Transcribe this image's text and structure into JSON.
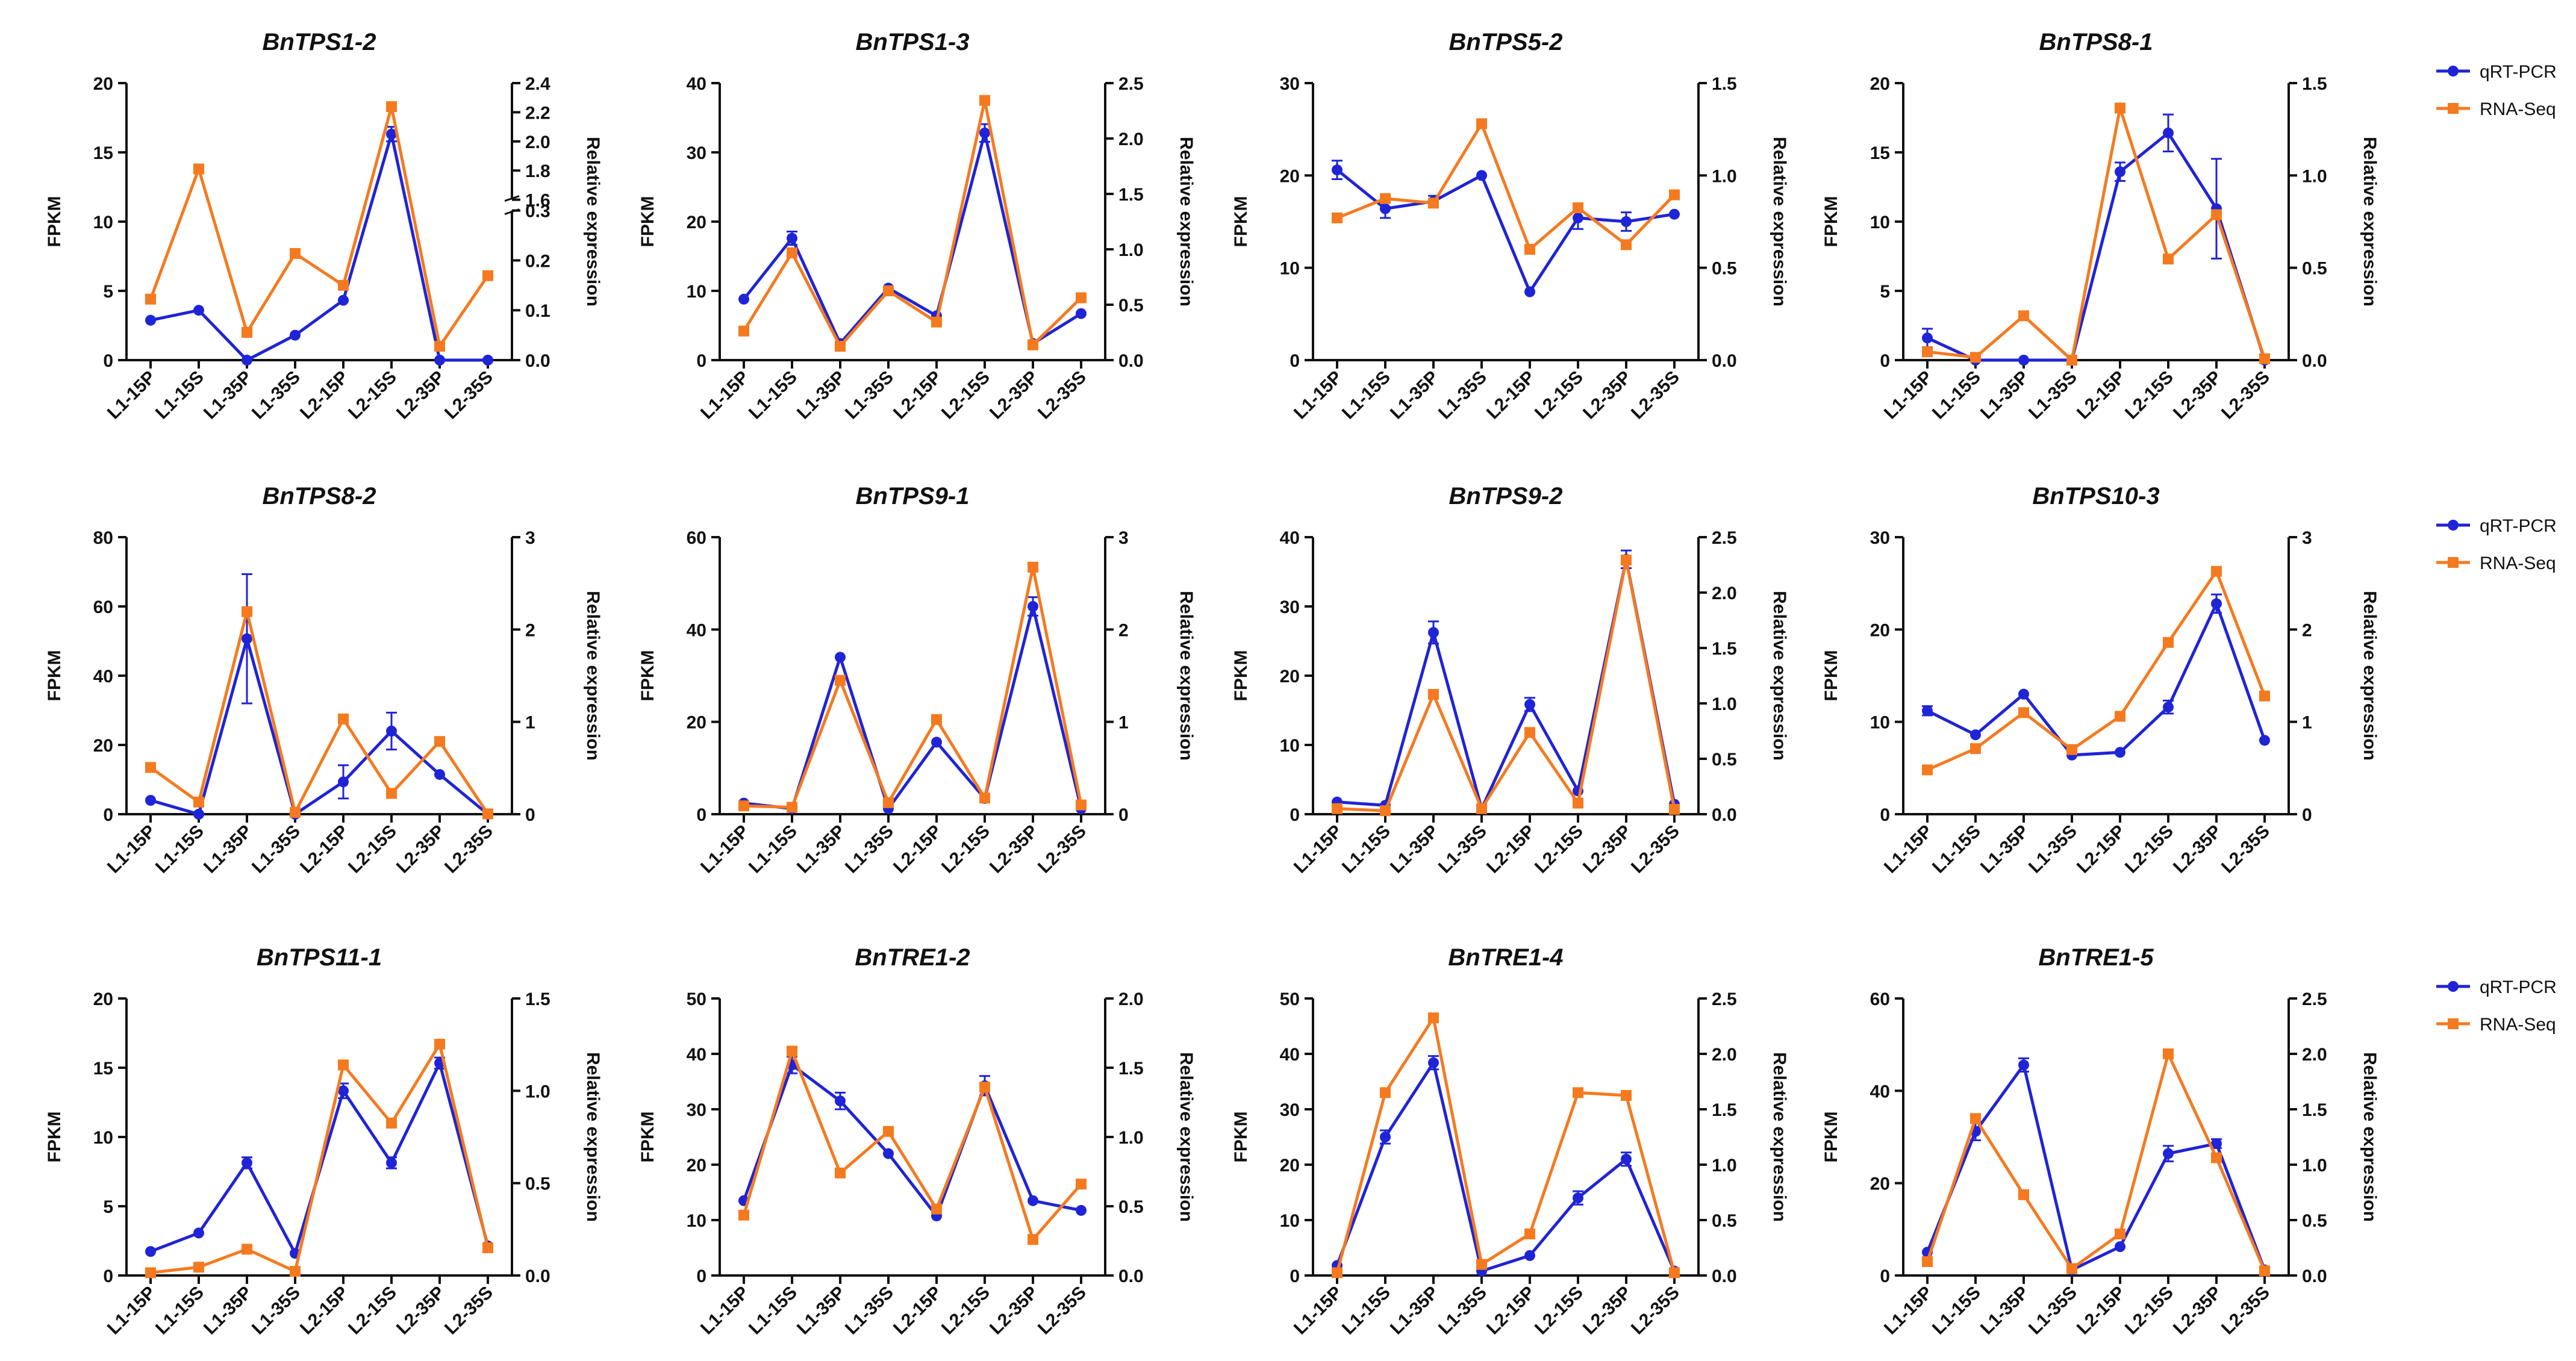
{
  "legend": {
    "qrt": "qRT-PCR",
    "rna": "RNA-Seq"
  },
  "colors": {
    "qrt": "#1f24d6",
    "rna": "#f57a1f",
    "axis": "#111111"
  },
  "chart_data": [
    {
      "type": "line",
      "title": "BnTPS1-2",
      "categories": [
        "L1-15P",
        "L1-15S",
        "L1-35P",
        "L1-35S",
        "L2-15P",
        "L2-15S",
        "L2-35P",
        "L2-35S"
      ],
      "ylabel": "FPKM",
      "y2label": "Relative expression",
      "ylim": [
        0,
        20
      ],
      "yticks": [
        0,
        5,
        10,
        15,
        20
      ],
      "y2ticks": [
        "0.0",
        "0.1",
        "0.2",
        "0.3",
        "1.6",
        "1.8",
        "2.0",
        "2.2",
        "2.4"
      ],
      "broken_axis": {
        "lower": [
          0,
          0.3
        ],
        "upper": [
          1.6,
          2.4
        ]
      },
      "series": [
        {
          "name": "qRT-PCR",
          "axis": "right",
          "values": [
            0.08,
            0.1,
            0.0,
            0.05,
            0.12,
            2.05,
            0.0,
            0.0
          ],
          "err": [
            0,
            0,
            0,
            0,
            0,
            0.05,
            0,
            0
          ]
        },
        {
          "name": "RNA-Seq",
          "axis": "left",
          "values": [
            4.4,
            13.8,
            2.0,
            7.7,
            5.4,
            18.3,
            1.0,
            6.1
          ]
        }
      ]
    },
    {
      "type": "line",
      "title": "BnTPS1-3",
      "categories": [
        "L1-15P",
        "L1-15S",
        "L1-35P",
        "L1-35S",
        "L2-15P",
        "L2-15S",
        "L2-35P",
        "L2-35S"
      ],
      "ylabel": "FPKM",
      "y2label": "Relative expression",
      "ylim": [
        0,
        40
      ],
      "yticks": [
        0,
        10,
        20,
        30,
        40
      ],
      "y2lim": [
        0,
        2.5
      ],
      "y2ticks": [
        "0.0",
        "0.5",
        "1.0",
        "1.5",
        "2.0",
        "2.5"
      ],
      "series": [
        {
          "name": "qRT-PCR",
          "axis": "right",
          "values": [
            0.55,
            1.1,
            0.15,
            0.65,
            0.4,
            2.05,
            0.15,
            0.42
          ],
          "err": [
            0,
            0.06,
            0,
            0,
            0,
            0.08,
            0,
            0
          ]
        },
        {
          "name": "RNA-Seq",
          "axis": "left",
          "values": [
            4.2,
            15.5,
            2.0,
            10.0,
            5.5,
            37.5,
            2.2,
            9.0
          ]
        }
      ]
    },
    {
      "type": "line",
      "title": "BnTPS5-2",
      "categories": [
        "L1-15P",
        "L1-15S",
        "L1-35P",
        "L1-35S",
        "L2-15P",
        "L2-15S",
        "L2-35P",
        "L2-35S"
      ],
      "ylabel": "FPKM",
      "y2label": "Relative expression",
      "ylim": [
        0,
        30
      ],
      "yticks": [
        0,
        10,
        20,
        30
      ],
      "y2lim": [
        0,
        1.5
      ],
      "y2ticks": [
        "0.0",
        "0.5",
        "1.0",
        "1.5"
      ],
      "series": [
        {
          "name": "qRT-PCR",
          "axis": "right",
          "values": [
            1.03,
            0.82,
            0.86,
            1.0,
            0.37,
            0.77,
            0.75,
            0.79
          ],
          "err": [
            0.05,
            0.05,
            0.03,
            0,
            0,
            0.06,
            0.05,
            0
          ]
        },
        {
          "name": "RNA-Seq",
          "axis": "left",
          "values": [
            15.4,
            17.5,
            17.0,
            25.6,
            12.0,
            16.5,
            12.5,
            17.9
          ]
        }
      ]
    },
    {
      "type": "line",
      "title": "BnTPS8-1",
      "categories": [
        "L1-15P",
        "L1-15S",
        "L1-35P",
        "L1-35S",
        "L2-15P",
        "L2-15S",
        "L2-35P",
        "L2-35S"
      ],
      "ylabel": "FPKM",
      "y2label": "Relative expression",
      "ylim": [
        0,
        20
      ],
      "yticks": [
        0,
        5,
        10,
        15,
        20
      ],
      "y2lim": [
        0,
        1.5
      ],
      "y2ticks": [
        "0.0",
        "0.5",
        "1.0",
        "1.5"
      ],
      "series": [
        {
          "name": "qRT-PCR",
          "axis": "right",
          "values": [
            0.12,
            0.0,
            0.0,
            0.0,
            1.02,
            1.23,
            0.82,
            0.0
          ],
          "err": [
            0.05,
            0,
            0,
            0,
            0.05,
            0.1,
            0.27,
            0
          ]
        },
        {
          "name": "RNA-Seq",
          "axis": "left",
          "values": [
            0.6,
            0.2,
            3.2,
            0.0,
            18.2,
            7.3,
            10.5,
            0.1
          ]
        }
      ]
    },
    {
      "type": "line",
      "title": "BnTPS8-2",
      "categories": [
        "L1-15P",
        "L1-15S",
        "L1-35P",
        "L1-35S",
        "L2-15P",
        "L2-15S",
        "L2-35P",
        "L2-35S"
      ],
      "ylabel": "FPKM",
      "y2label": "Relative expression",
      "ylim": [
        0,
        80
      ],
      "yticks": [
        0,
        20,
        40,
        60,
        80
      ],
      "y2lim": [
        0,
        3
      ],
      "y2ticks": [
        "0",
        "1",
        "2",
        "3"
      ],
      "series": [
        {
          "name": "qRT-PCR",
          "axis": "right",
          "values": [
            0.15,
            0.0,
            1.9,
            0.0,
            0.35,
            0.9,
            0.43,
            0.0
          ],
          "err": [
            0,
            0,
            0.7,
            0,
            0.18,
            0.2,
            0,
            0
          ]
        },
        {
          "name": "RNA-Seq",
          "axis": "left",
          "values": [
            13.5,
            3.5,
            58.5,
            0.5,
            27.5,
            6.0,
            21.0,
            0.1
          ]
        }
      ]
    },
    {
      "type": "line",
      "title": "BnTPS9-1",
      "categories": [
        "L1-15P",
        "L1-15S",
        "L1-35P",
        "L1-35S",
        "L2-15P",
        "L2-15S",
        "L2-35P",
        "L2-35S"
      ],
      "ylabel": "FPKM",
      "y2label": "Relative expression",
      "ylim": [
        0,
        60
      ],
      "yticks": [
        0,
        20,
        40,
        60
      ],
      "y2lim": [
        0,
        3
      ],
      "y2ticks": [
        "0",
        "1",
        "2",
        "3"
      ],
      "series": [
        {
          "name": "qRT-PCR",
          "axis": "right",
          "values": [
            0.12,
            0.06,
            1.7,
            0.06,
            0.78,
            0.17,
            2.25,
            0.06
          ],
          "err": [
            0,
            0,
            0,
            0,
            0,
            0,
            0.1,
            0
          ]
        },
        {
          "name": "RNA-Seq",
          "axis": "left",
          "values": [
            1.8,
            1.5,
            29.0,
            2.5,
            20.5,
            3.5,
            53.5,
            2.0
          ]
        }
      ]
    },
    {
      "type": "line",
      "title": "BnTPS9-2",
      "categories": [
        "L1-15P",
        "L1-15S",
        "L1-35P",
        "L1-35S",
        "L2-15P",
        "L2-15S",
        "L2-35P",
        "L2-35S"
      ],
      "ylabel": "FPKM",
      "y2label": "Relative expression",
      "ylim": [
        0,
        40
      ],
      "yticks": [
        0,
        10,
        20,
        30,
        40
      ],
      "y2lim": [
        0,
        2.5
      ],
      "y2ticks": [
        "0.0",
        "0.5",
        "1.0",
        "1.5",
        "2.0",
        "2.5"
      ],
      "series": [
        {
          "name": "qRT-PCR",
          "axis": "right",
          "values": [
            0.11,
            0.08,
            1.64,
            0.05,
            0.99,
            0.21,
            2.3,
            0.09
          ],
          "err": [
            0,
            0,
            0.1,
            0,
            0.06,
            0,
            0.08,
            0
          ]
        },
        {
          "name": "RNA-Seq",
          "axis": "left",
          "values": [
            0.8,
            0.5,
            17.3,
            0.8,
            11.8,
            1.6,
            36.7,
            0.7
          ]
        }
      ]
    },
    {
      "type": "line",
      "title": "BnTPS10-3",
      "categories": [
        "L1-15P",
        "L1-15S",
        "L1-35P",
        "L1-35S",
        "L2-15P",
        "L2-15S",
        "L2-35P",
        "L2-35S"
      ],
      "ylabel": "FPKM",
      "y2label": "Relative expression",
      "ylim": [
        0,
        30
      ],
      "yticks": [
        0,
        10,
        20,
        30
      ],
      "y2lim": [
        0,
        3
      ],
      "y2ticks": [
        "0",
        "1",
        "2",
        "3"
      ],
      "series": [
        {
          "name": "qRT-PCR",
          "axis": "right",
          "values": [
            1.12,
            0.86,
            1.3,
            0.64,
            0.67,
            1.16,
            2.28,
            0.8
          ],
          "err": [
            0.05,
            0,
            0,
            0,
            0,
            0.07,
            0.1,
            0
          ]
        },
        {
          "name": "RNA-Seq",
          "axis": "left",
          "values": [
            4.8,
            7.1,
            11.0,
            7.0,
            10.6,
            18.6,
            26.3,
            12.8
          ]
        }
      ]
    },
    {
      "type": "line",
      "title": "BnTPS11-1",
      "categories": [
        "L1-15P",
        "L1-15S",
        "L1-35P",
        "L1-35S",
        "L2-15P",
        "L2-15S",
        "L2-35P",
        "L2-35S"
      ],
      "ylabel": "FPKM",
      "y2label": "Relative expression",
      "ylim": [
        0,
        20
      ],
      "yticks": [
        0,
        5,
        10,
        15,
        20
      ],
      "y2lim": [
        0,
        1.5
      ],
      "y2ticks": [
        "0.0",
        "0.5",
        "1.0",
        "1.5"
      ],
      "series": [
        {
          "name": "qRT-PCR",
          "axis": "right",
          "values": [
            0.13,
            0.23,
            0.61,
            0.12,
            1.0,
            0.61,
            1.15,
            0.16
          ],
          "err": [
            0,
            0,
            0.03,
            0,
            0.04,
            0.03,
            0.03,
            0
          ]
        },
        {
          "name": "RNA-Seq",
          "axis": "left",
          "values": [
            0.2,
            0.6,
            1.9,
            0.3,
            15.2,
            11.0,
            16.7,
            2.0
          ]
        }
      ]
    },
    {
      "type": "line",
      "title": "BnTRE1-2",
      "categories": [
        "L1-15P",
        "L1-15S",
        "L1-35P",
        "L1-35S",
        "L2-15P",
        "L2-15S",
        "L2-35P",
        "L2-35S"
      ],
      "ylabel": "FPKM",
      "y2label": "Relative expression",
      "ylim": [
        0,
        50
      ],
      "yticks": [
        0,
        10,
        20,
        30,
        40,
        50
      ],
      "y2lim": [
        0,
        2.0
      ],
      "y2ticks": [
        "0.0",
        "0.5",
        "1.0",
        "1.5",
        "2.0"
      ],
      "series": [
        {
          "name": "qRT-PCR",
          "axis": "right",
          "values": [
            0.54,
            1.52,
            1.26,
            0.88,
            0.43,
            1.37,
            0.54,
            0.47
          ],
          "err": [
            0,
            0.06,
            0.06,
            0,
            0,
            0.07,
            0,
            0
          ]
        },
        {
          "name": "RNA-Seq",
          "axis": "left",
          "values": [
            10.9,
            40.5,
            18.5,
            26.0,
            12.0,
            34.0,
            6.5,
            16.5
          ]
        }
      ]
    },
    {
      "type": "line",
      "title": "BnTRE1-4",
      "categories": [
        "L1-15P",
        "L1-15S",
        "L1-35P",
        "L1-35S",
        "L2-15P",
        "L2-15S",
        "L2-35P",
        "L2-35S"
      ],
      "ylabel": "FPKM",
      "y2label": "Relative expression",
      "ylim": [
        0,
        50
      ],
      "yticks": [
        0,
        10,
        20,
        30,
        40,
        50
      ],
      "y2lim": [
        0,
        2.5
      ],
      "y2ticks": [
        "0.0",
        "0.5",
        "1.0",
        "1.5",
        "2.0",
        "2.5"
      ],
      "series": [
        {
          "name": "qRT-PCR",
          "axis": "right",
          "values": [
            0.09,
            1.25,
            1.92,
            0.04,
            0.18,
            0.7,
            1.05,
            0.04
          ],
          "err": [
            0,
            0.06,
            0.06,
            0,
            0,
            0.06,
            0.06,
            0
          ]
        },
        {
          "name": "RNA-Seq",
          "axis": "left",
          "values": [
            0.5,
            33.0,
            46.5,
            2.0,
            7.5,
            33.0,
            32.5,
            0.5
          ]
        }
      ]
    },
    {
      "type": "line",
      "title": "BnTRE1-5",
      "categories": [
        "L1-15P",
        "L1-15S",
        "L1-35P",
        "L1-35S",
        "L2-15P",
        "L2-15S",
        "L2-35P",
        "L2-35S"
      ],
      "ylabel": "FPKM",
      "y2label": "Relative expression",
      "ylim": [
        0,
        60
      ],
      "yticks": [
        0,
        20,
        40,
        60
      ],
      "y2lim": [
        0,
        2.5
      ],
      "y2ticks": [
        "0.0",
        "0.5",
        "1.0",
        "1.5",
        "2.0",
        "2.5"
      ],
      "series": [
        {
          "name": "qRT-PCR",
          "axis": "right",
          "values": [
            0.21,
            1.3,
            1.9,
            0.05,
            0.26,
            1.1,
            1.19,
            0.05
          ],
          "err": [
            0,
            0.08,
            0.06,
            0,
            0,
            0.07,
            0.04,
            0
          ]
        },
        {
          "name": "RNA-Seq",
          "axis": "left",
          "values": [
            3.0,
            34.0,
            17.5,
            1.5,
            9.0,
            48.0,
            25.5,
            1.0
          ]
        }
      ]
    }
  ]
}
